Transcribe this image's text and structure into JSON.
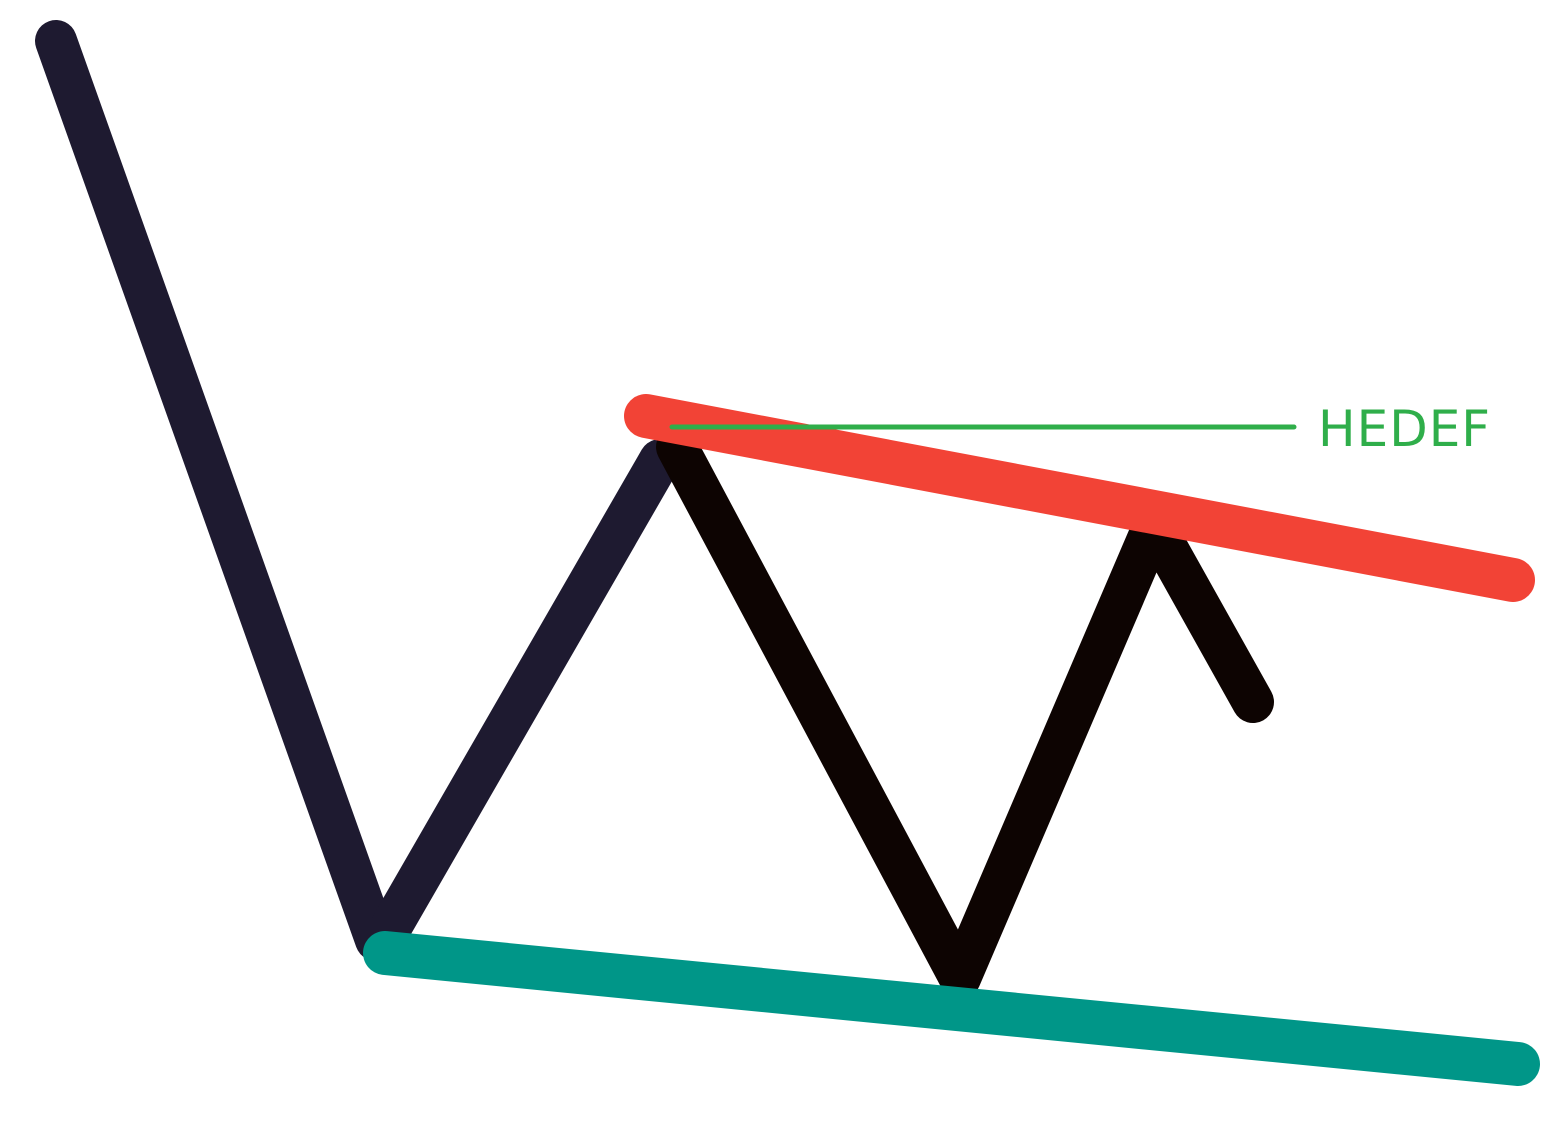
{
  "target_label": "HEDEF",
  "colors": {
    "price_early": "#1e1a30",
    "price_late": "#0d0402",
    "resistance": "#f24336",
    "support": "#009688",
    "target": "#2fae4a",
    "background": "#ffffff"
  }
}
